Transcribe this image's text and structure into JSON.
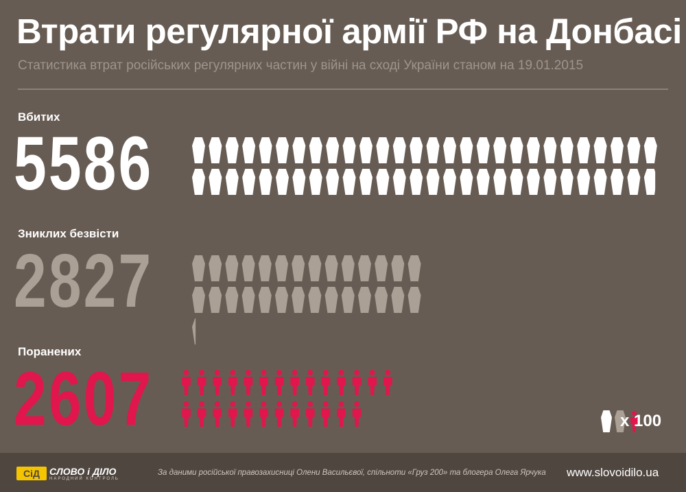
{
  "header": {
    "title": "Втрати регулярної армії РФ на Донбасі",
    "subtitle": "Статистика втрат російських регулярних частин у війні на сході України станом на 19.01.2015"
  },
  "colors": {
    "killed": "#ffffff",
    "missing": "#aba096",
    "wounded": "#e0164c"
  },
  "chart_data": {
    "type": "pictogram",
    "unit": "x 100",
    "categories": [
      "Вбитих",
      "Зниклих безвісти",
      "Поранених"
    ],
    "values": [
      5586,
      2827,
      2607
    ],
    "series": [
      {
        "label": "Вбитих",
        "value": "5586",
        "icon": "coffin-icon",
        "count": 55.86
      },
      {
        "label": "Зниклих безвісти",
        "value": "2827",
        "icon": "coffin-icon",
        "count": 28.27
      },
      {
        "label": "Поранених",
        "value": "2607",
        "icon": "person-icon",
        "count": 26.07
      }
    ]
  },
  "legend": {
    "text": "x 100",
    "icons": [
      "coffin-icon",
      "coffin-icon",
      "person-icon"
    ]
  },
  "footer": {
    "logo_main": "СЛОВО і ДІЛО",
    "logo_sub": "НАРОДНИЙ КОНТРОЛЬ",
    "logo_mark": "СіД",
    "source": "За даними російської правозахисниці Олени Васильєвої, спільноти «Груз 200» та блогера Олега Ярчука",
    "site": "www.slovoidilo.ua"
  }
}
